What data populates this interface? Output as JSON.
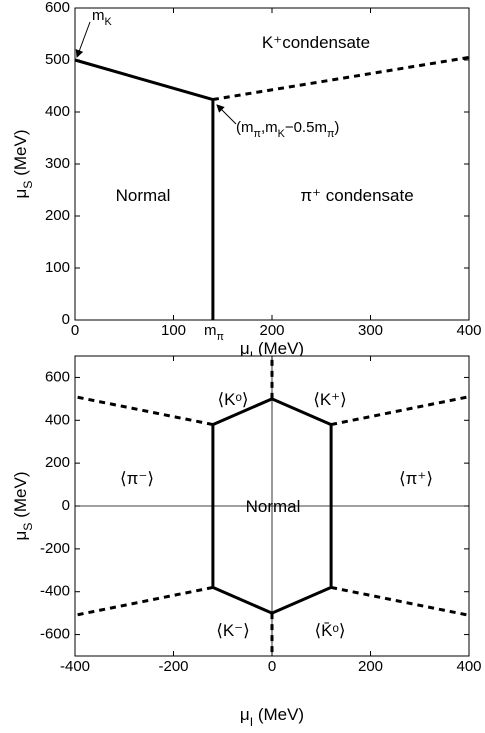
{
  "chart_data": [
    {
      "type": "line",
      "xlabel": [
        {
          "text": "μ"
        },
        {
          "text": "I",
          "sub": true
        },
        {
          "text": " (MeV)"
        }
      ],
      "ylabel": [
        {
          "text": "μ"
        },
        {
          "text": "S",
          "sub": true
        },
        {
          "text": " (MeV)"
        }
      ],
      "xlim": [
        0,
        400
      ],
      "ylim": [
        0,
        600
      ],
      "xticks": [
        0,
        100,
        200,
        300,
        400
      ],
      "yticks": [
        0,
        100,
        200,
        300,
        400,
        500,
        600
      ],
      "zero_lines": false,
      "series": [
        {
          "x": [
            0,
            140
          ],
          "values": [
            500,
            424
          ],
          "dash": false,
          "color": "#000000"
        },
        {
          "x": [
            140,
            140
          ],
          "values": [
            424,
            0
          ],
          "dash": false,
          "color": "#000000"
        },
        {
          "x": [
            140,
            400
          ],
          "values": [
            424,
            505
          ],
          "dash": true,
          "color": "#000000"
        }
      ],
      "annotations": [
        [
          {
            "text": "K⁺condensate"
          }
        ],
        [
          {
            "text": "Normal"
          }
        ],
        [
          {
            "text": "π⁺ condensate"
          }
        ],
        [
          {
            "text": "m"
          },
          {
            "text": "K",
            "sub": true
          }
        ],
        [
          {
            "text": "(m"
          },
          {
            "text": "π",
            "sub": true
          },
          {
            "text": ",m"
          },
          {
            "text": "K",
            "sub": true
          },
          {
            "text": "−0.5m"
          },
          {
            "text": "π",
            "sub": true
          },
          {
            "text": ")"
          }
        ],
        [
          {
            "text": "m"
          },
          {
            "text": "π",
            "sub": true
          }
        ]
      ]
    },
    {
      "type": "line",
      "xlabel": [
        {
          "text": "μ"
        },
        {
          "text": "I",
          "sub": true
        },
        {
          "text": " (MeV)"
        }
      ],
      "ylabel": [
        {
          "text": "μ"
        },
        {
          "text": "S",
          "sub": true
        },
        {
          "text": " (MeV)"
        }
      ],
      "xlim": [
        -400,
        400
      ],
      "ylim": [
        -700,
        700
      ],
      "xticks": [
        -400,
        -200,
        0,
        200,
        400
      ],
      "yticks": [
        -600,
        -400,
        -200,
        0,
        200,
        400,
        600
      ],
      "zero_lines": true,
      "series": [
        {
          "x": [
            0,
            120,
            120,
            0,
            -120,
            -120,
            0
          ],
          "values": [
            500,
            380,
            -380,
            -500,
            -380,
            380,
            500
          ],
          "dash": false,
          "color": "#000000"
        },
        {
          "x": [
            120,
            400
          ],
          "values": [
            380,
            510
          ],
          "dash": true,
          "color": "#000000"
        },
        {
          "x": [
            -120,
            -400
          ],
          "values": [
            380,
            510
          ],
          "dash": true,
          "color": "#000000"
        },
        {
          "x": [
            120,
            400
          ],
          "values": [
            -380,
            -510
          ],
          "dash": true,
          "color": "#000000"
        },
        {
          "x": [
            -120,
            -400
          ],
          "values": [
            -380,
            -510
          ],
          "dash": true,
          "color": "#000000"
        },
        {
          "x": [
            0,
            0
          ],
          "values": [
            500,
            700
          ],
          "dash": true,
          "color": "#000000"
        },
        {
          "x": [
            0,
            0
          ],
          "values": [
            -500,
            -700
          ],
          "dash": true,
          "color": "#000000"
        }
      ],
      "annotations": [
        [
          {
            "text": "⟨Kᵒ⟩"
          }
        ],
        [
          {
            "text": "⟨K⁺⟩"
          }
        ],
        [
          {
            "text": "⟨π⁻⟩"
          }
        ],
        [
          {
            "text": "⟨π⁺⟩"
          }
        ],
        [
          {
            "text": "Normal"
          }
        ],
        [
          {
            "text": "⟨K⁻⟩"
          }
        ],
        [
          {
            "text": "⟨K̄ᵒ⟩"
          }
        ]
      ]
    }
  ]
}
